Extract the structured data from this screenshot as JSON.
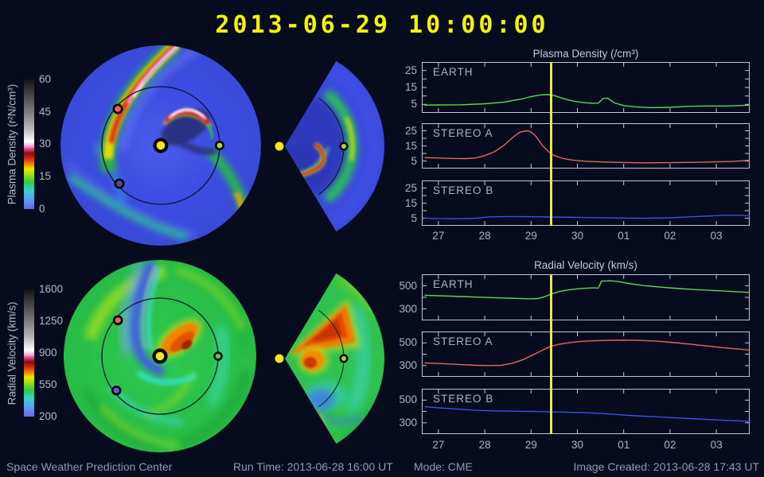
{
  "header": {
    "timestamp": "2013-06-29 10:00:00"
  },
  "colorbars": {
    "density": {
      "label": "Plasma Density (r²N/cm³)",
      "ticks": [
        "60",
        "45",
        "30",
        "15",
        "0"
      ]
    },
    "velocity": {
      "label": "Radial Velocity (km/s)",
      "ticks": [
        "1600",
        "1250",
        "900",
        "550",
        "200"
      ]
    }
  },
  "maps": {
    "markers": {
      "sun": "yellow",
      "earth": "green",
      "stereo_a": "red",
      "stereo_b": "blue"
    }
  },
  "chart_data": [
    {
      "type": "line",
      "title": "Plasma Density (/cm³)",
      "ylim": [
        0,
        30
      ],
      "yticks": [
        5,
        15,
        25
      ],
      "yminor": 5,
      "xlim": [
        26.64,
        33.72
      ],
      "xticks": [
        27,
        28,
        29,
        30,
        31,
        32,
        33
      ],
      "xtick_labels": [
        "27",
        "28",
        "29",
        "30",
        "01",
        "02",
        "03"
      ],
      "timeline_x": 29.44,
      "timeline_color": "#f6ef00",
      "series": [
        {
          "name": "EARTH",
          "color": "#5ad65a",
          "x": [
            26.7,
            27.0,
            27.5,
            28.0,
            28.4,
            28.8,
            29.0,
            29.2,
            29.35,
            29.5,
            29.7,
            29.9,
            30.1,
            30.3,
            30.45,
            30.55,
            30.65,
            30.8,
            31.0,
            31.3,
            31.6,
            32.0,
            32.4,
            32.8,
            33.2,
            33.5,
            33.72
          ],
          "y": [
            4.6,
            4.7,
            4.8,
            5.4,
            6.3,
            8.2,
            9.6,
            10.6,
            10.8,
            10.2,
            8.4,
            7.0,
            6.2,
            5.7,
            5.7,
            8.4,
            8.7,
            5.9,
            4.3,
            3.4,
            3.1,
            3.3,
            3.9,
            4.1,
            4.1,
            4.3,
            4.6
          ]
        },
        {
          "name": "STEREO A",
          "color": "#e6685a",
          "x": [
            26.7,
            27.0,
            27.3,
            27.6,
            27.8,
            28.0,
            28.2,
            28.4,
            28.6,
            28.75,
            28.9,
            29.0,
            29.1,
            29.25,
            29.4,
            29.5,
            29.7,
            29.9,
            30.2,
            30.6,
            31.0,
            31.5,
            32.0,
            32.5,
            33.0,
            33.4,
            33.72
          ],
          "y": [
            7.2,
            7.0,
            6.7,
            6.6,
            7.0,
            8.6,
            11.0,
            15.0,
            20.5,
            24.0,
            25.0,
            24.2,
            21.5,
            15.0,
            10.5,
            8.6,
            6.6,
            5.6,
            4.8,
            4.3,
            4.0,
            3.8,
            3.9,
            4.1,
            4.4,
            4.8,
            5.6
          ]
        },
        {
          "name": "STEREO B",
          "color": "#4050e0",
          "x": [
            26.7,
            27.0,
            27.4,
            27.8,
            28.1,
            28.5,
            29.0,
            29.5,
            30.0,
            30.5,
            31.0,
            31.5,
            32.0,
            32.4,
            32.8,
            33.2,
            33.5,
            33.72
          ],
          "y": [
            5.1,
            4.8,
            4.7,
            5.0,
            5.9,
            6.1,
            6.0,
            5.8,
            5.6,
            5.3,
            5.1,
            5.0,
            5.3,
            5.9,
            6.4,
            7.0,
            7.0,
            6.5
          ]
        }
      ]
    },
    {
      "type": "line",
      "title": "Radial Velocity (km/s)",
      "ylim": [
        200,
        600
      ],
      "yticks": [
        300,
        500
      ],
      "yminor": 100,
      "xlim": [
        26.64,
        33.72
      ],
      "xticks": [
        27,
        28,
        29,
        30,
        31,
        32,
        33
      ],
      "xtick_labels": [
        "27",
        "28",
        "29",
        "30",
        "01",
        "02",
        "03"
      ],
      "timeline_x": 29.44,
      "timeline_color": "#f6ef00",
      "series": [
        {
          "name": "EARTH",
          "color": "#5ad65a",
          "x": [
            26.7,
            27.0,
            27.5,
            28.0,
            28.5,
            28.8,
            29.0,
            29.15,
            29.3,
            29.42,
            29.6,
            29.8,
            30.0,
            30.2,
            30.35,
            30.45,
            30.52,
            30.7,
            30.9,
            31.1,
            31.4,
            31.8,
            32.2,
            32.6,
            33.0,
            33.4,
            33.72
          ],
          "y": [
            418,
            414,
            407,
            399,
            393,
            389,
            387,
            390,
            406,
            426,
            450,
            464,
            474,
            480,
            482,
            480,
            540,
            544,
            536,
            521,
            503,
            488,
            476,
            466,
            458,
            450,
            442
          ]
        },
        {
          "name": "STEREO A",
          "color": "#e6685a",
          "x": [
            26.7,
            27.0,
            27.4,
            27.8,
            28.1,
            28.35,
            28.6,
            28.85,
            29.1,
            29.3,
            29.42,
            29.6,
            29.8,
            30.0,
            30.3,
            30.7,
            31.0,
            31.3,
            31.7,
            32.0,
            32.4,
            32.8,
            33.2,
            33.5,
            33.72
          ],
          "y": [
            322,
            318,
            310,
            302,
            300,
            302,
            320,
            356,
            406,
            446,
            468,
            488,
            500,
            510,
            518,
            523,
            524,
            522,
            515,
            505,
            490,
            472,
            455,
            444,
            436
          ]
        },
        {
          "name": "STEREO B",
          "color": "#4050e0",
          "x": [
            26.7,
            27.0,
            27.4,
            27.8,
            28.2,
            28.6,
            29.0,
            29.42,
            29.8,
            30.2,
            30.6,
            31.0,
            31.4,
            31.8,
            32.2,
            32.6,
            33.0,
            33.4,
            33.72
          ],
          "y": [
            442,
            432,
            420,
            410,
            405,
            402,
            400,
            396,
            392,
            388,
            380,
            368,
            358,
            350,
            342,
            333,
            325,
            318,
            312
          ]
        }
      ]
    }
  ],
  "footer": {
    "left": "Space Weather Prediction Center",
    "run_time": "Run Time: 2013-06-28 16:00 UT",
    "mode": "Mode: CME",
    "right": "Image Created: 2013-06-28 17:43 UT"
  }
}
